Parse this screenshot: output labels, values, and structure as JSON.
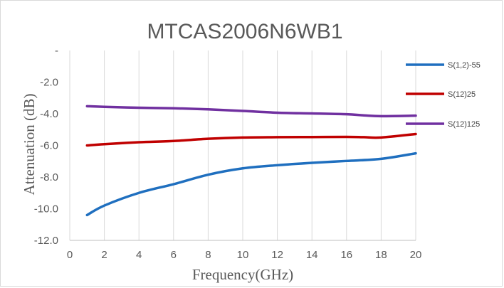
{
  "chart_data": {
    "type": "line",
    "title": "MTCAS2006N6WB1",
    "xlabel": "Frequency(GHz)",
    "ylabel": "Attenuation (dB)",
    "xlim": [
      0,
      20
    ],
    "ylim": [
      -12,
      0
    ],
    "x_ticks": [
      "0",
      "2",
      "4",
      "6",
      "8",
      "10",
      "12",
      "14",
      "16",
      "18",
      "20"
    ],
    "y_ticks": [
      "-",
      "-2.0",
      "-4.0",
      "-6.0",
      "-8.0",
      "-10.0",
      "-12.0"
    ],
    "grid": "vertical",
    "legend": "right",
    "series": [
      {
        "name": "S(1,2)-55",
        "color": "#1f6fbf",
        "x": [
          1,
          2,
          4,
          6,
          8,
          10,
          12,
          14,
          16,
          18,
          20
        ],
        "values": [
          -10.4,
          -9.8,
          -9.0,
          -8.45,
          -7.85,
          -7.45,
          -7.25,
          -7.1,
          -6.98,
          -6.85,
          -6.5
        ]
      },
      {
        "name": "S(12)25",
        "color": "#c00000",
        "x": [
          1,
          2,
          4,
          6,
          8,
          10,
          12,
          14,
          16,
          17,
          18,
          20
        ],
        "values": [
          -6.0,
          -5.92,
          -5.8,
          -5.72,
          -5.58,
          -5.5,
          -5.48,
          -5.47,
          -5.46,
          -5.48,
          -5.5,
          -5.28
        ]
      },
      {
        "name": "S(12)125",
        "color": "#7030a0",
        "x": [
          1,
          2,
          4,
          6,
          8,
          10,
          12,
          14,
          16,
          17,
          18,
          20
        ],
        "values": [
          -3.52,
          -3.56,
          -3.62,
          -3.65,
          -3.72,
          -3.82,
          -3.93,
          -3.98,
          -4.03,
          -4.1,
          -4.15,
          -4.12
        ]
      }
    ]
  }
}
